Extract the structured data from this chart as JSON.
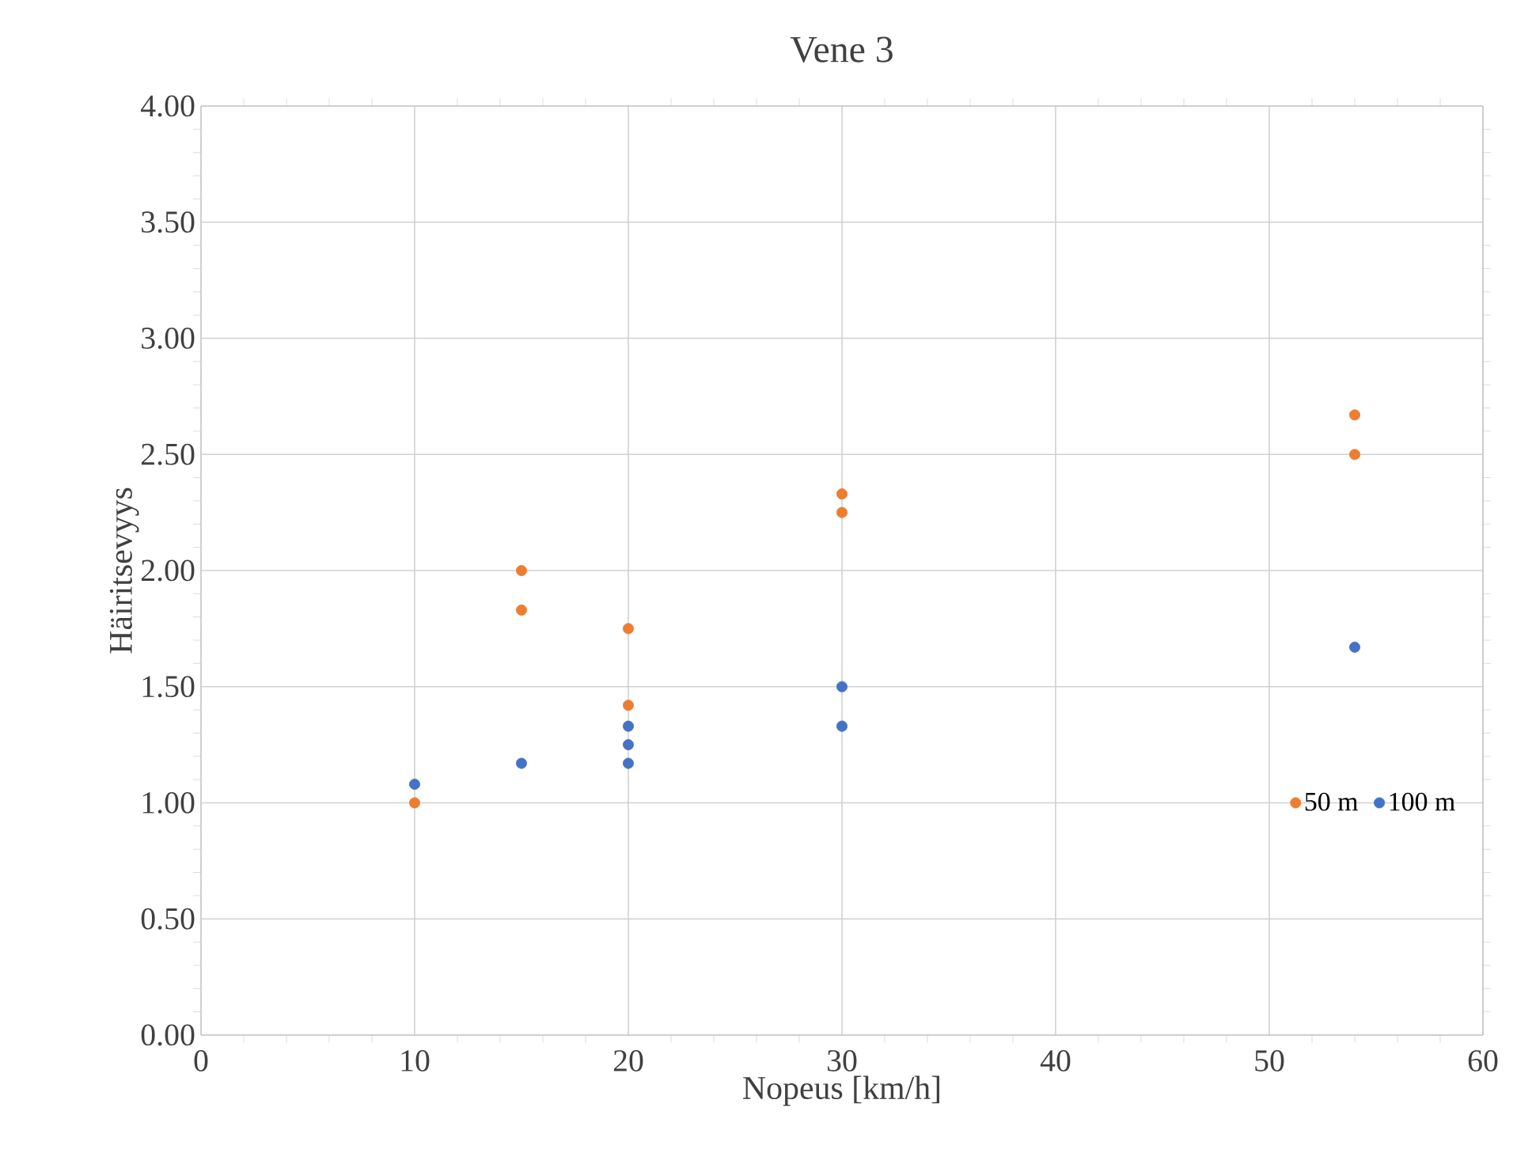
{
  "chart_data": {
    "type": "scatter",
    "title": "Vene 3",
    "xlabel": "Nopeus [km/h]",
    "ylabel": "Häiritsevyys",
    "xlim": [
      0,
      60
    ],
    "xticks": [
      0,
      10,
      20,
      30,
      40,
      50,
      60
    ],
    "ylim": [
      0,
      4
    ],
    "yticks": [
      {
        "value": 0,
        "label": "0.00"
      },
      {
        "value": 0.5,
        "label": "0.50"
      },
      {
        "value": 1,
        "label": "1.00"
      },
      {
        "value": 1.5,
        "label": "1.50"
      },
      {
        "value": 2,
        "label": "2.00"
      },
      {
        "value": 2.5,
        "label": "2.50"
      },
      {
        "value": 3,
        "label": "3.00"
      },
      {
        "value": 3.5,
        "label": "3.50"
      },
      {
        "value": 4,
        "label": "4.00"
      }
    ],
    "grid": true,
    "legend": "right",
    "series": [
      {
        "name": "50 m",
        "color": "#ed7d31",
        "x": [
          10,
          15,
          15,
          20,
          20,
          30,
          30,
          54,
          54
        ],
        "values": [
          1.0,
          2.0,
          1.83,
          1.75,
          1.42,
          2.33,
          2.25,
          2.67,
          2.5
        ]
      },
      {
        "name": "100 m",
        "color": "#4472c4",
        "x": [
          10,
          15,
          20,
          20,
          20,
          30,
          30,
          54
        ],
        "values": [
          1.08,
          1.17,
          1.33,
          1.25,
          1.17,
          1.5,
          1.33,
          1.67
        ]
      }
    ]
  }
}
